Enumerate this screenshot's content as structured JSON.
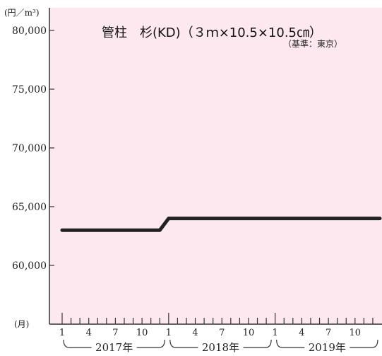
{
  "chart_data": {
    "type": "line",
    "title": "管柱　杉(KD)（３ｍ×10.5×10.5㎝）",
    "subtitle": "（基準：東京）",
    "y_unit": "(円／m³)",
    "x_unit": "(月)",
    "ylim": [
      55000,
      80000
    ],
    "yticks": [
      "80,000",
      "75,000",
      "70,000",
      "65,000",
      "60,000"
    ],
    "ytick_values": [
      80000,
      75000,
      70000,
      65000,
      60000
    ],
    "month_labels": [
      "1",
      "4",
      "7",
      "10",
      "1",
      "4",
      "7",
      "10",
      "1",
      "4",
      "7",
      "10"
    ],
    "month_label_index": [
      0,
      3,
      6,
      9,
      12,
      15,
      18,
      21,
      24,
      27,
      30,
      33
    ],
    "year_labels": [
      "2017年",
      "2018年",
      "2019年"
    ],
    "grid": false,
    "series": [
      {
        "values": [
          63000,
          63000,
          63000,
          63000,
          63000,
          63000,
          63000,
          63000,
          63000,
          63000,
          63000,
          63000,
          64000,
          64000,
          64000,
          64000,
          64000,
          64000,
          64000,
          64000,
          64000,
          64000,
          64000,
          64000,
          64000,
          64000,
          64000,
          64000,
          64000,
          64000,
          64000,
          64000,
          64000,
          64000,
          64000,
          64000
        ]
      }
    ],
    "colors": {
      "plot_bg": "#fde8f0",
      "line": "#222222",
      "axis": "#333333"
    }
  }
}
